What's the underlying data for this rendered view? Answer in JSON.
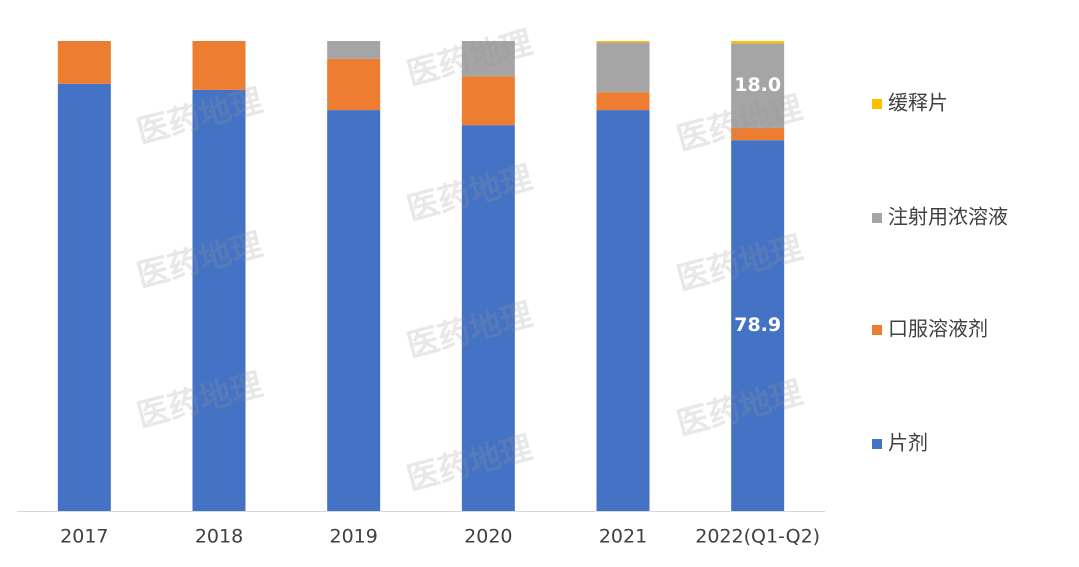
{
  "chart_data": {
    "type": "stacked_bar",
    "watermark": "医药地理",
    "categories": [
      "2017",
      "2018",
      "2019",
      "2020",
      "2021",
      "2022(Q1-Q2)"
    ],
    "series": [
      {
        "name": "片剂",
        "color": "#4472c4",
        "values": [
          90.9,
          89.6,
          85.3,
          82.1,
          85.3,
          78.9
        ],
        "value_labels": [
          null,
          null,
          null,
          null,
          null,
          "78.9"
        ]
      },
      {
        "name": "口服溶液剂",
        "color": "#ed7d31",
        "values": [
          9.1,
          10.4,
          10.9,
          10.4,
          3.8,
          2.6
        ]
      },
      {
        "name": "注射用浓溶液",
        "color": "#a5a5a5",
        "values": [
          0,
          0,
          3.8,
          7.5,
          10.6,
          18.0
        ],
        "value_labels": [
          null,
          null,
          null,
          null,
          null,
          "18.0"
        ]
      },
      {
        "name": "缓释片",
        "color": "#ffc000",
        "values": [
          0,
          0,
          0,
          0,
          0.3,
          0.5
        ]
      }
    ],
    "ylim": [
      0,
      100
    ]
  }
}
